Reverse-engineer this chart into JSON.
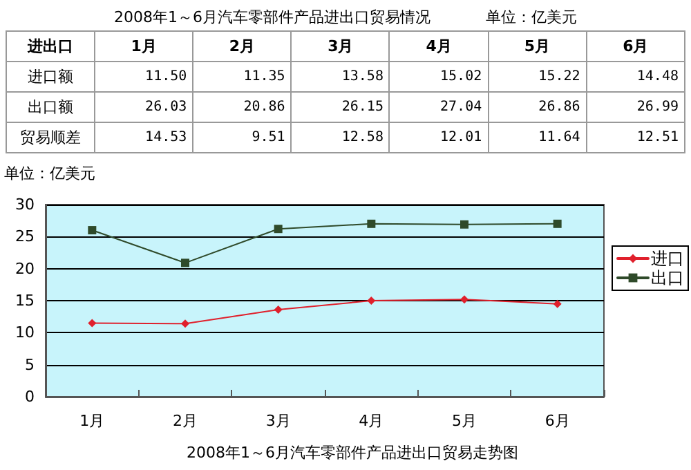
{
  "chart_data": [
    {
      "type": "heatmap",
      "title": "2008年1～6月汽车零部件产品进出口贸易情况",
      "subtitle": "单位：亿美元",
      "ylabel": "进出口",
      "categories": [
        "1月",
        "2月",
        "3月",
        "4月",
        "5月",
        "6月"
      ],
      "y_categories": [
        "进口额",
        "出口额",
        "贸易顺差"
      ],
      "data_labels": true,
      "cells": [
        [
          11.5,
          11.35,
          13.58,
          15.02,
          15.22,
          14.48
        ],
        [
          26.03,
          20.86,
          26.15,
          27.04,
          26.86,
          26.99
        ],
        [
          14.53,
          9.51,
          12.58,
          12.01,
          11.64,
          12.51
        ]
      ],
      "cell_labels": [
        [
          "11.50",
          "11.35",
          "13.58",
          "15.02",
          "15.22",
          "14.48"
        ],
        [
          "26.03",
          "20.86",
          "26.15",
          "27.04",
          "26.86",
          "26.99"
        ],
        [
          "14.53",
          "9.51",
          "12.58",
          "12.01",
          "11.64",
          "12.51"
        ]
      ]
    },
    {
      "type": "line",
      "title": "2008年1～6月汽车零部件产品进出口贸易走势图",
      "ylabel": "单位：亿美元",
      "categories": [
        "1月",
        "2月",
        "3月",
        "4月",
        "5月",
        "6月"
      ],
      "ylim": [
        0,
        30
      ],
      "yticks": [
        0,
        5,
        10,
        15,
        20,
        25,
        30
      ],
      "grid": "y",
      "legend": "right",
      "series": [
        {
          "name": "进口",
          "color": "#e0202c",
          "marker": "diamond",
          "values": [
            11.5,
            11.4,
            13.6,
            15.0,
            15.2,
            14.5
          ]
        },
        {
          "name": "出口",
          "color": "#2f4a2a",
          "marker": "square",
          "values": [
            26.0,
            20.9,
            26.2,
            27.0,
            26.9,
            27.0
          ]
        }
      ]
    }
  ]
}
